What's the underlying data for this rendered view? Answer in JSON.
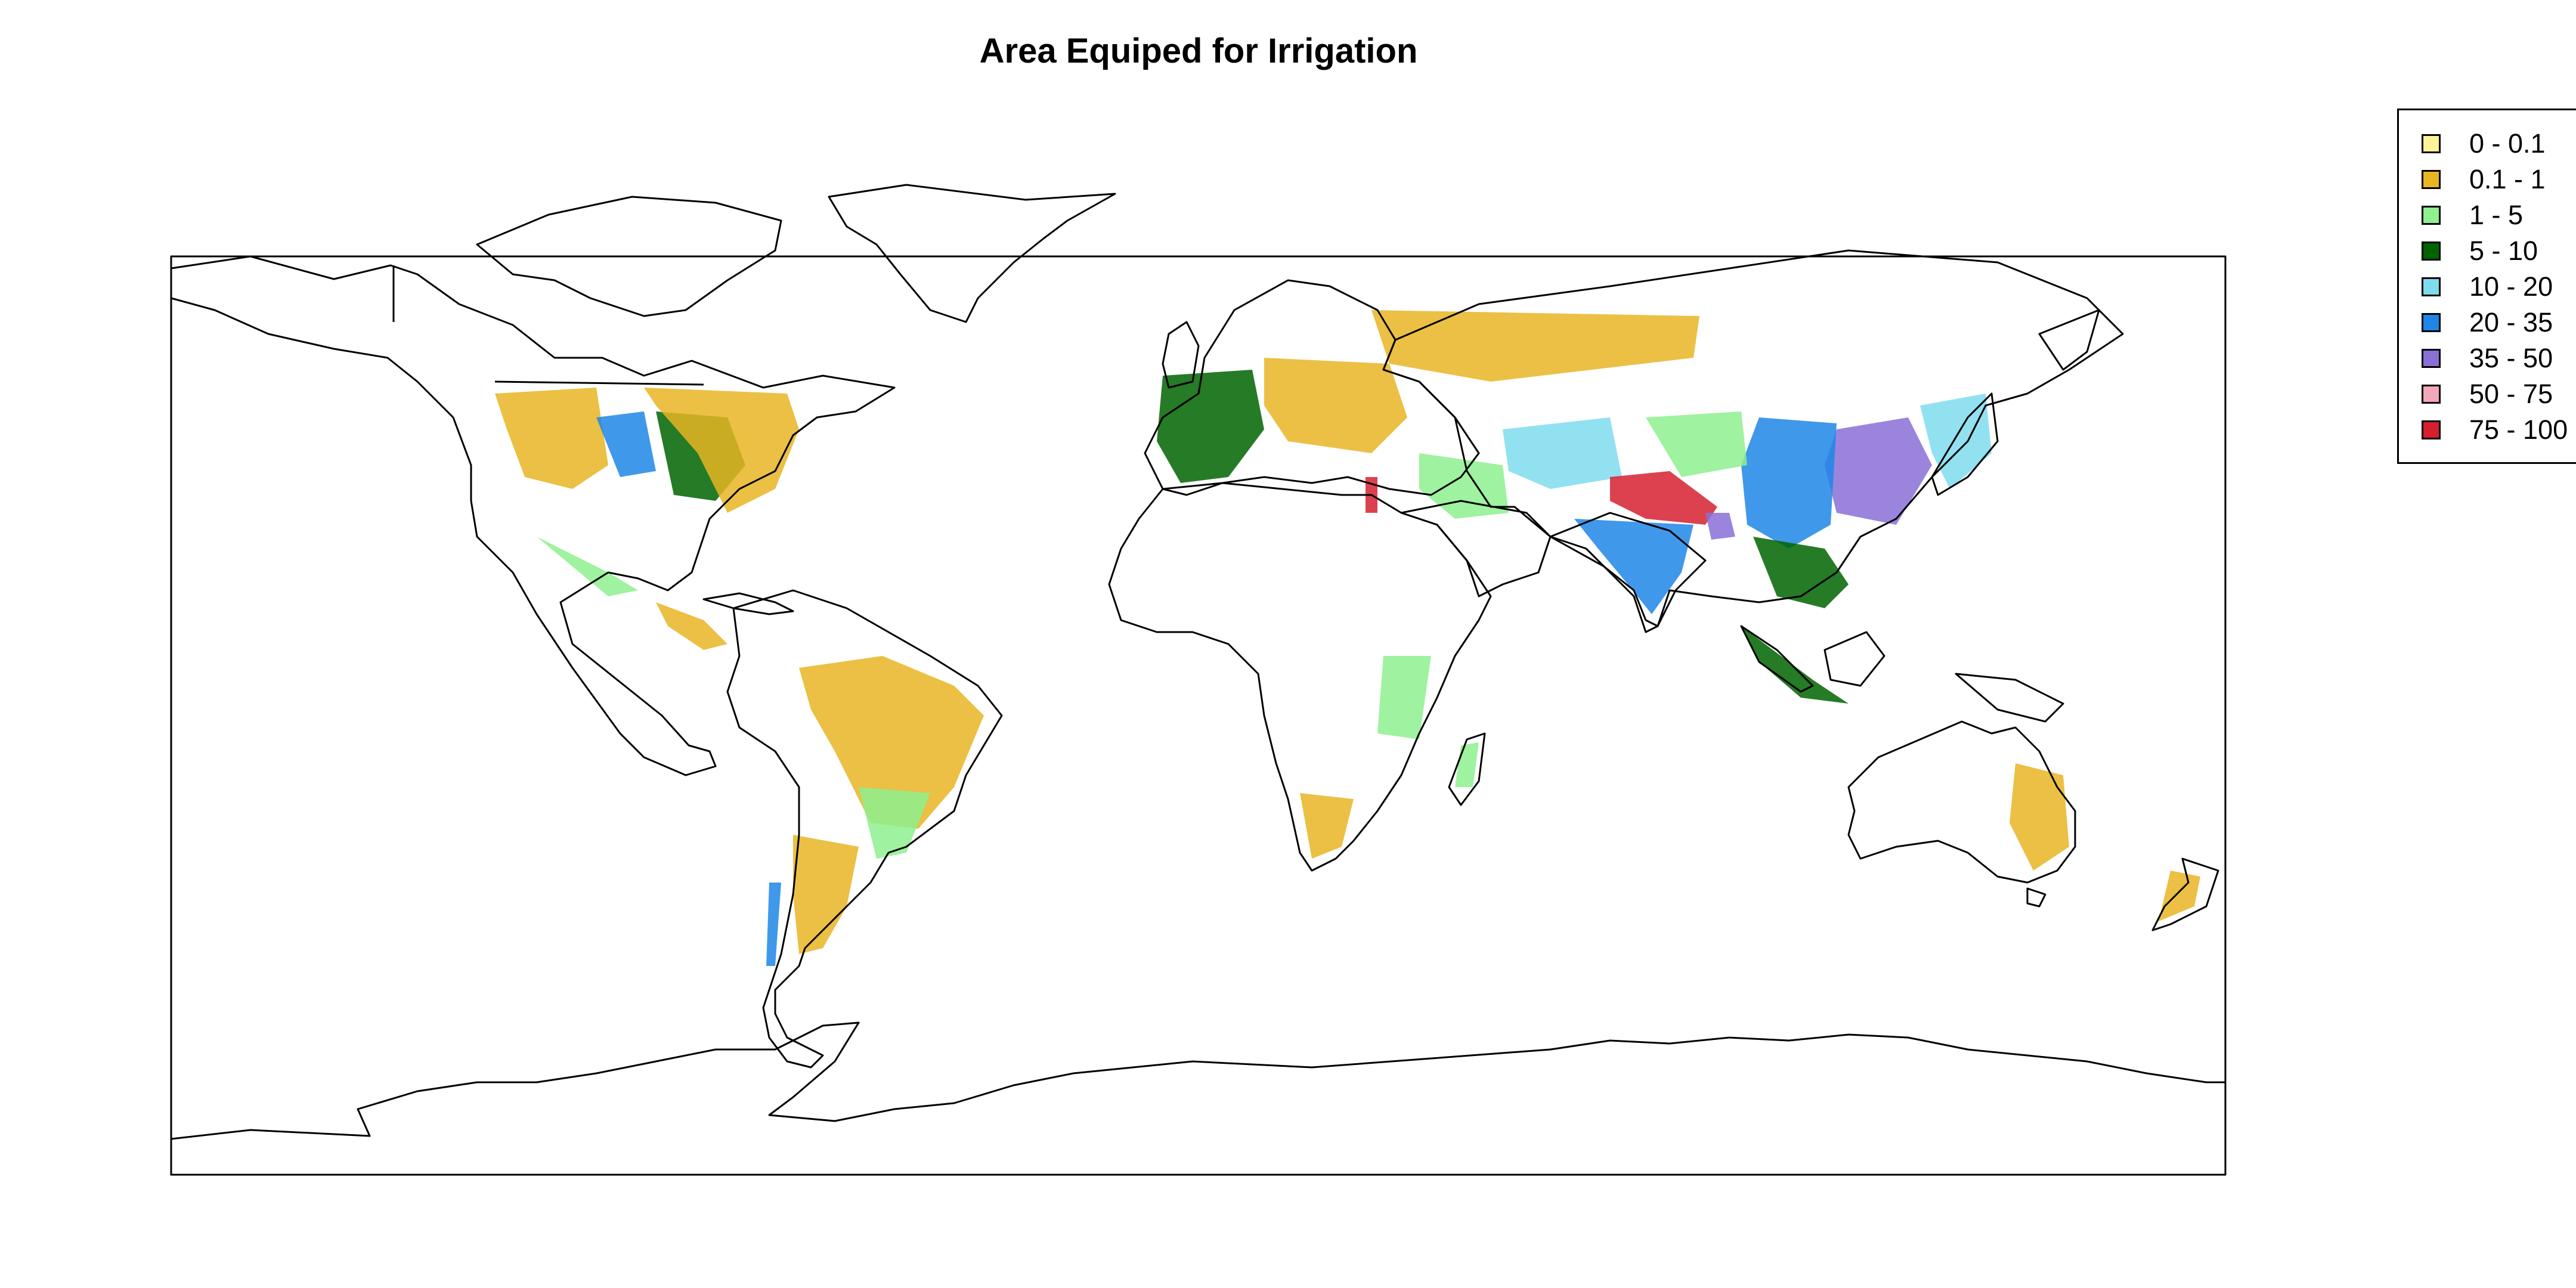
{
  "title": "Area Equiped for Irrigation",
  "legend": {
    "items": [
      {
        "label": "0 - 0.1",
        "color": "#fff39a"
      },
      {
        "label": "0.1 - 1",
        "color": "#e8b523"
      },
      {
        "label": "1 - 5",
        "color": "#8ef08e"
      },
      {
        "label": "5 - 10",
        "color": "#006400"
      },
      {
        "label": "10 - 20",
        "color": "#7fdcee"
      },
      {
        "label": "20 - 35",
        "color": "#1e86e6"
      },
      {
        "label": "35 - 50",
        "color": "#8a70d6"
      },
      {
        "label": "50 - 75",
        "color": "#f4a7b9"
      },
      {
        "label": "75 - 100",
        "color": "#d62030"
      }
    ]
  },
  "map": {
    "projection": "longitude-latitude",
    "outline_color": "#000000",
    "regions": [
      {
        "name": "western-usa",
        "class": 1
      },
      {
        "name": "great-plains",
        "class": 5
      },
      {
        "name": "mississippi-valley",
        "class": 3
      },
      {
        "name": "eastern-usa",
        "class": 1
      },
      {
        "name": "central-mexico",
        "class": 2
      },
      {
        "name": "central-america",
        "class": 1
      },
      {
        "name": "brazil",
        "class": 1
      },
      {
        "name": "southern-brazil-uruguay",
        "class": 2
      },
      {
        "name": "argentina",
        "class": 1
      },
      {
        "name": "chile",
        "class": 5
      },
      {
        "name": "western-europe",
        "class": 3
      },
      {
        "name": "eastern-europe",
        "class": 1
      },
      {
        "name": "russia-kazakhstan",
        "class": 1
      },
      {
        "name": "nile-delta",
        "class": 8
      },
      {
        "name": "middle-east",
        "class": 2
      },
      {
        "name": "central-asia",
        "class": 4
      },
      {
        "name": "indus-ganges-plain",
        "class": 8
      },
      {
        "name": "india",
        "class": 5
      },
      {
        "name": "bangladesh",
        "class": 6
      },
      {
        "name": "china-north-plain",
        "class": 6
      },
      {
        "name": "china-east",
        "class": 5
      },
      {
        "name": "china-west",
        "class": 2
      },
      {
        "name": "southeast-asia",
        "class": 3
      },
      {
        "name": "indonesia",
        "class": 3
      },
      {
        "name": "japan-korea",
        "class": 4
      },
      {
        "name": "east-africa",
        "class": 2
      },
      {
        "name": "south-africa",
        "class": 1
      },
      {
        "name": "madagascar",
        "class": 2
      },
      {
        "name": "australia-east",
        "class": 1
      },
      {
        "name": "new-zealand",
        "class": 1
      }
    ]
  }
}
